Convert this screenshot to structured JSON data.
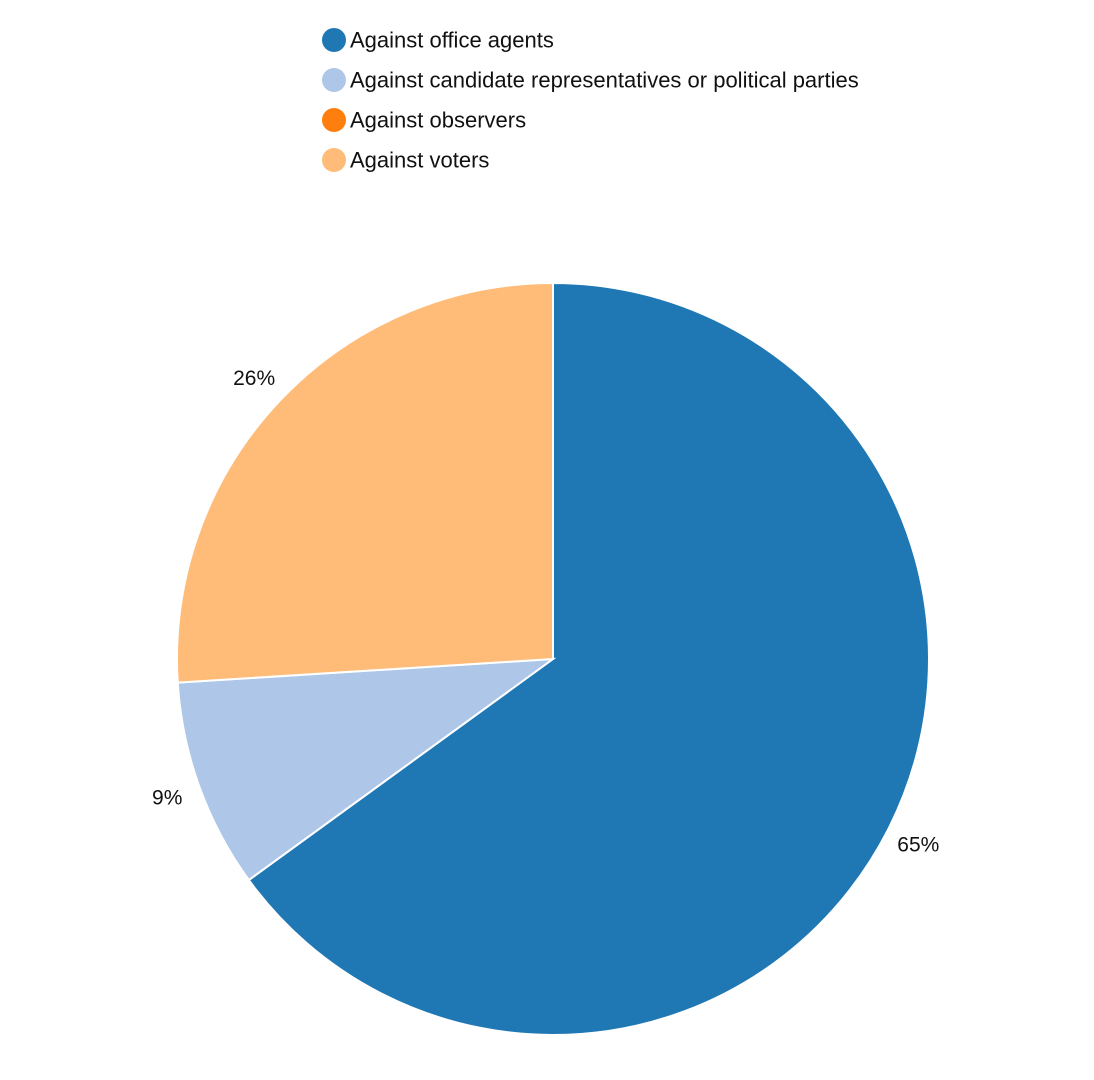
{
  "chart_data": {
    "type": "pie",
    "title": "",
    "legend_position": "top",
    "categories": [
      "Against office agents",
      "Against candidate representatives or political parties",
      "Against observers",
      "Against voters"
    ],
    "values": [
      65,
      9,
      0,
      26
    ],
    "value_labels": [
      "65%",
      "9%",
      "",
      "26%"
    ],
    "colors": [
      "#1f77b4",
      "#aec7e8",
      "#ff7f0e",
      "#ffbb78"
    ]
  }
}
